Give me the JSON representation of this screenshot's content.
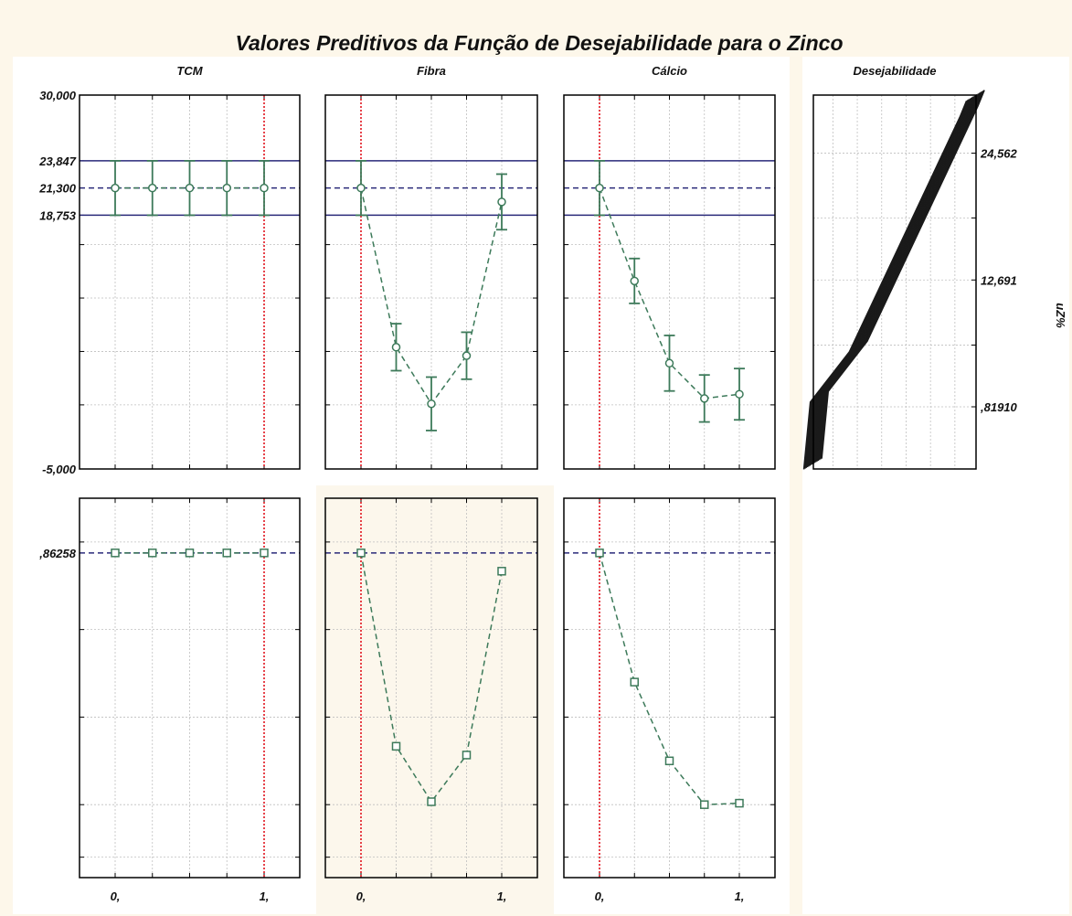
{
  "chart_data": {
    "type": "profiler",
    "title": "Valores Preditivos da Função de  Desejabilidade para o Zinco",
    "factors": [
      {
        "name": "TCM",
        "x_tick_labels": [
          "0,",
          "1,"
        ],
        "x": [
          0,
          0.25,
          0.5,
          0.75,
          1
        ],
        "current_x": 1,
        "response": {
          "values": [
            21.3,
            21.3,
            21.3,
            21.3,
            21.3
          ],
          "ci_low": [
            18.753,
            18.753,
            18.753,
            18.753,
            18.753
          ],
          "ci_high": [
            23.847,
            23.847,
            23.847,
            23.847,
            23.847
          ]
        },
        "desirability": {
          "values": [
            0.86258,
            0.86258,
            0.86258,
            0.86258,
            0.86258
          ]
        }
      },
      {
        "name": "Fibra",
        "x_tick_labels": [
          "0,",
          "1,"
        ],
        "x": [
          0,
          0.25,
          0.5,
          0.75,
          1
        ],
        "current_x": 0,
        "response": {
          "values": [
            21.3,
            6.4,
            1.1,
            5.6,
            20.0
          ],
          "ci_low": [
            18.753,
            4.2,
            -1.4,
            3.4,
            17.4
          ],
          "ci_high": [
            23.847,
            8.6,
            3.6,
            7.8,
            22.6
          ]
        },
        "desirability": {
          "values": [
            0.86258,
            0.2,
            0.01,
            0.17,
            0.8
          ]
        }
      },
      {
        "name": "Cálcio",
        "x_tick_labels": [
          "0,",
          "1,"
        ],
        "x": [
          0,
          0.25,
          0.5,
          0.75,
          1
        ],
        "current_x": 0,
        "response": {
          "values": [
            21.3,
            12.6,
            4.9,
            1.6,
            2.0
          ],
          "ci_low": [
            18.753,
            10.5,
            2.3,
            -0.6,
            -0.4
          ],
          "ci_high": [
            23.847,
            14.7,
            7.5,
            3.8,
            4.4
          ]
        },
        "desirability": {
          "values": [
            0.86258,
            0.42,
            0.15,
            0.0,
            0.005
          ]
        }
      }
    ],
    "response_axis": {
      "ylim": [
        -5,
        30
      ],
      "tick_labels": [
        "30,000",
        "23,847",
        "21,300",
        "18,753",
        "-5,000"
      ],
      "target": 21.3,
      "limits": [
        18.753,
        23.847
      ]
    },
    "desirability_axis": {
      "ylim": [
        -0.25,
        1.05
      ],
      "tick_labels": [
        ",86258"
      ],
      "current": 0.86258
    },
    "desirability_panel": {
      "title": "Desejabilidade",
      "right_tick_labels": [
        "24,562",
        "12,691",
        ",81910"
      ],
      "side_label": "uZ%",
      "ylim": [
        -5,
        30
      ],
      "curve": {
        "x": [
          0,
          0.04,
          0.28,
          0.96,
          1.0
        ],
        "y": [
          -4.5,
          1.8,
          6.5,
          28.5,
          30.0
        ]
      }
    },
    "colors": {
      "background": "#fdf7ea",
      "panel": "#ffffff",
      "highlight_panel": "#fcf7ec",
      "series": "#3d7a5a",
      "limit_line": "#2a2a7a",
      "current_x_line": "#e0141e",
      "grid": "#bfbfbf",
      "desirability_curve": "#1a1a1a"
    }
  }
}
